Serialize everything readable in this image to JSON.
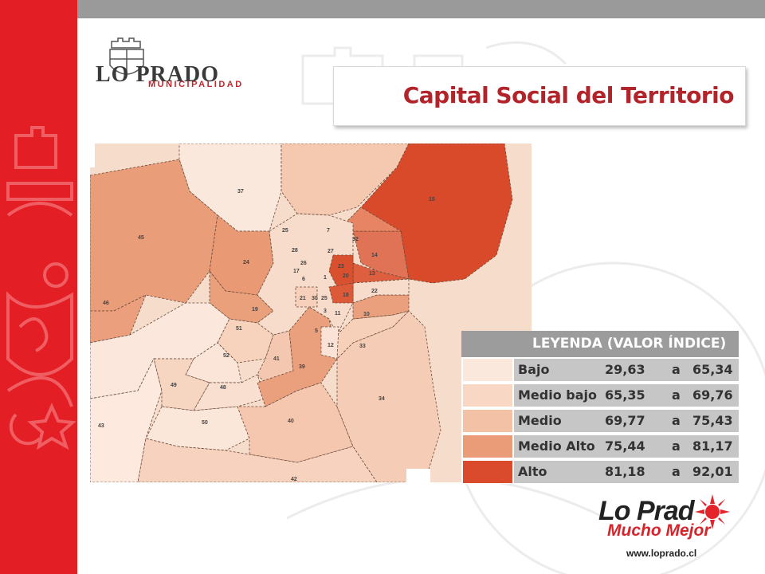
{
  "header": {
    "title": "Capital Social del Territorio"
  },
  "logo": {
    "name": "LO PRADO",
    "subtitle": "MUNICIPALIDAD"
  },
  "map": {
    "zone_labels": [
      "37",
      "15",
      "45",
      "25",
      "7",
      "32",
      "28",
      "26",
      "27",
      "14",
      "24",
      "17",
      "6",
      "1",
      "23",
      "20",
      "13",
      "46",
      "19",
      "21",
      "30",
      "25",
      "18",
      "22",
      "3",
      "11",
      "10",
      "51",
      "5",
      "12",
      "33",
      "52",
      "41",
      "39",
      "49",
      "48",
      "34",
      "43",
      "50",
      "40",
      "42"
    ]
  },
  "legend": {
    "title": "LEYENDA (VALOR ÍNDICE)",
    "separator": "a",
    "rows": [
      {
        "label": "Bajo",
        "min": "29,63",
        "max": "65,34",
        "color": "#fbe8dd"
      },
      {
        "label": "Medio bajo",
        "min": "65,35",
        "max": "69,76",
        "color": "#f8d8c5"
      },
      {
        "label": "Medio",
        "min": "69,77",
        "max": "75,43",
        "color": "#f3c1a6"
      },
      {
        "label": "Medio Alto",
        "min": "75,44",
        "max": "81,17",
        "color": "#ea9c78"
      },
      {
        "label": "Alto",
        "min": "81,18",
        "max": "92,01",
        "color": "#da4a2c"
      }
    ]
  },
  "brand": {
    "main": "Lo Prad",
    "tagline": "Mucho Mejor",
    "url": "www.loprado.cl"
  },
  "colors": {
    "sidebar": "#e31e24",
    "topbar": "#9a9a9a",
    "title": "#b2232a"
  }
}
